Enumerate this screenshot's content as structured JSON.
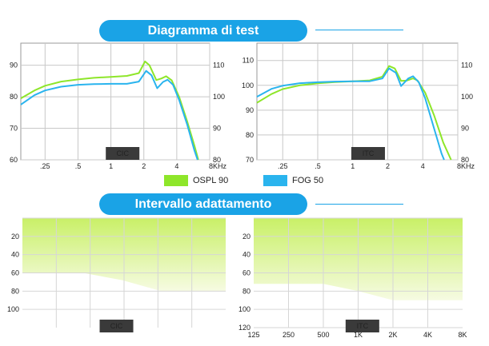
{
  "headings": {
    "test": "Diagramma di test",
    "fitting": "Intervallo adattamento"
  },
  "legend": [
    {
      "label": "OSPL 90",
      "color": "#8ee62a"
    },
    {
      "label": "FOG 50",
      "color": "#2ab4ee"
    }
  ],
  "colors": {
    "ospl": "#8ee62a",
    "fog": "#2ab4ee",
    "accent": "#1aa3e6",
    "tag": "#3a3a3a",
    "fill_top": "#c9f067",
    "fill_bottom": "#f6fbe2"
  },
  "chart_data": [
    {
      "type": "line",
      "tag": "CIC",
      "x_scale": "log",
      "xlim": [
        0.15,
        8
      ],
      "x_ticks": [
        0.25,
        0.5,
        1,
        2,
        4,
        8
      ],
      "x_tick_labels": [
        ".25",
        ".5",
        "1",
        "2",
        "4",
        "8KHz"
      ],
      "y_left": {
        "lim": [
          60,
          97
        ],
        "ticks": [
          60,
          70,
          80,
          90
        ]
      },
      "y_right": {
        "lim": [
          80,
          117
        ],
        "ticks": [
          80,
          90,
          100,
          110
        ]
      },
      "grid": true,
      "series": [
        {
          "name": "OSPL 90",
          "axis": "right",
          "color": "#8ee62a",
          "points": [
            [
              0.15,
              99.5
            ],
            [
              0.2,
              102
            ],
            [
              0.25,
              103.5
            ],
            [
              0.35,
              104.8
            ],
            [
              0.5,
              105.5
            ],
            [
              0.7,
              106
            ],
            [
              1,
              106.3
            ],
            [
              1.4,
              106.6
            ],
            [
              1.8,
              107.5
            ],
            [
              2.05,
              111.2
            ],
            [
              2.25,
              110
            ],
            [
              2.6,
              105.3
            ],
            [
              2.9,
              105.8
            ],
            [
              3.2,
              106.5
            ],
            [
              3.6,
              105.2
            ],
            [
              4.2,
              100
            ],
            [
              5,
              92
            ],
            [
              5.8,
              84.5
            ],
            [
              6.3,
              80
            ]
          ]
        },
        {
          "name": "FOG 50",
          "axis": "left",
          "color": "#2ab4ee",
          "points": [
            [
              0.15,
              77.5
            ],
            [
              0.2,
              80.5
            ],
            [
              0.25,
              82
            ],
            [
              0.35,
              83.2
            ],
            [
              0.5,
              83.8
            ],
            [
              0.7,
              84
            ],
            [
              1,
              84.1
            ],
            [
              1.4,
              84.1
            ],
            [
              1.8,
              84.8
            ],
            [
              2.1,
              88.2
            ],
            [
              2.35,
              86.8
            ],
            [
              2.65,
              82.7
            ],
            [
              3,
              84.7
            ],
            [
              3.3,
              85.4
            ],
            [
              3.7,
              83.8
            ],
            [
              4.2,
              79
            ],
            [
              5,
              71
            ],
            [
              5.8,
              63
            ],
            [
              6.2,
              60
            ]
          ]
        }
      ]
    },
    {
      "type": "line",
      "tag": "ITC",
      "x_scale": "log",
      "xlim": [
        0.15,
        8
      ],
      "x_ticks": [
        0.25,
        0.5,
        1,
        2,
        4,
        8
      ],
      "x_tick_labels": [
        ".25",
        ".5",
        "1",
        "2",
        "4",
        "8KHz"
      ],
      "y_left": {
        "lim": [
          70,
          117
        ],
        "ticks": [
          70,
          80,
          90,
          100,
          110
        ]
      },
      "y_right": {
        "lim": [
          80,
          117
        ],
        "ticks": [
          80,
          90,
          100,
          110
        ]
      },
      "grid": true,
      "series": [
        {
          "name": "OSPL 90",
          "axis": "left",
          "color": "#8ee62a",
          "points": [
            [
              0.15,
              93
            ],
            [
              0.2,
              96.5
            ],
            [
              0.25,
              98.5
            ],
            [
              0.35,
              100
            ],
            [
              0.5,
              100.8
            ],
            [
              0.7,
              101.3
            ],
            [
              1,
              101.6
            ],
            [
              1.4,
              102
            ],
            [
              1.8,
              103.5
            ],
            [
              2.05,
              107.8
            ],
            [
              2.3,
              106.8
            ],
            [
              2.6,
              101.8
            ],
            [
              2.9,
              101.9
            ],
            [
              3.3,
              102.8
            ],
            [
              3.6,
              102
            ],
            [
              4.2,
              97
            ],
            [
              5,
              88
            ],
            [
              6,
              77
            ],
            [
              7,
              70
            ]
          ]
        },
        {
          "name": "FOG 50",
          "axis": "right",
          "color": "#2ab4ee",
          "points": [
            [
              0.15,
              100
            ],
            [
              0.2,
              102.5
            ],
            [
              0.25,
              103.5
            ],
            [
              0.35,
              104.3
            ],
            [
              0.5,
              104.6
            ],
            [
              0.7,
              104.8
            ],
            [
              1,
              104.9
            ],
            [
              1.4,
              104.9
            ],
            [
              1.8,
              105.8
            ],
            [
              2.05,
              109
            ],
            [
              2.35,
              107.6
            ],
            [
              2.6,
              103.4
            ],
            [
              3,
              105.8
            ],
            [
              3.3,
              106.5
            ],
            [
              3.7,
              104.6
            ],
            [
              4.2,
              99.5
            ],
            [
              5,
              90
            ],
            [
              5.8,
              82
            ],
            [
              6.1,
              80
            ]
          ]
        }
      ]
    },
    {
      "type": "area",
      "tag": "CIC",
      "x_scale": "log",
      "xlim": [
        0.17,
        6.3
      ],
      "x_tick_labels": [],
      "ylim": [
        0,
        120
      ],
      "y_ticks": [
        20,
        40,
        60,
        80,
        100
      ],
      "y_tick_labels": [
        "20",
        "40",
        "60",
        "80",
        "100"
      ],
      "grid": true,
      "boundary": [
        [
          0.17,
          60
        ],
        [
          0.5,
          60
        ],
        [
          1,
          68
        ],
        [
          2,
          80
        ],
        [
          6.3,
          80
        ]
      ]
    },
    {
      "type": "area",
      "tag": "ITC",
      "x_scale": "log",
      "xlim": [
        0.125,
        8
      ],
      "x_ticks": [
        0.125,
        0.25,
        0.5,
        1,
        2,
        4,
        8
      ],
      "x_tick_labels": [
        "125",
        "250",
        "500",
        "1K",
        "2K",
        "4K",
        "8K"
      ],
      "ylim": [
        0,
        120
      ],
      "y_ticks": [
        20,
        40,
        60,
        80,
        100,
        120
      ],
      "y_tick_labels": [
        "20",
        "40",
        "60",
        "80",
        "100",
        "120"
      ],
      "grid": true,
      "boundary": [
        [
          0.125,
          72
        ],
        [
          0.5,
          72
        ],
        [
          1,
          80
        ],
        [
          2,
          90
        ],
        [
          8,
          90
        ]
      ]
    }
  ]
}
